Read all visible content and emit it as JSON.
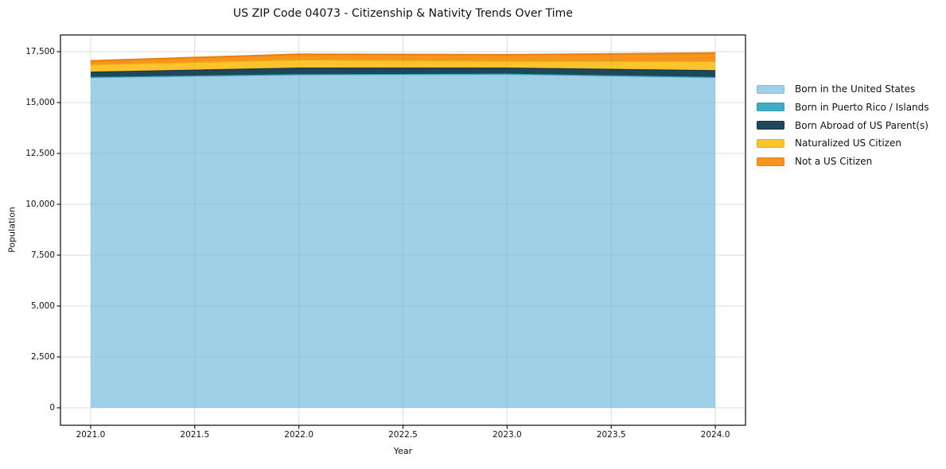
{
  "chart_data": {
    "type": "area",
    "stacked": true,
    "title": "US ZIP Code 04073 - Citizenship & Nativity Trends Over Time",
    "xlabel": "Year",
    "ylabel": "Population",
    "x": [
      2021,
      2022,
      2023,
      2024
    ],
    "series": [
      {
        "name": "Born in the United States",
        "color": "#a0d0e6",
        "edge_color": "#82bedb",
        "values": [
          16235,
          16370,
          16395,
          16235
        ]
      },
      {
        "name": "Born in Puerto Rico / Islands",
        "color": "#3fabc4",
        "edge_color": "#2f9cb8",
        "values": [
          25,
          25,
          25,
          25
        ]
      },
      {
        "name": "Born Abroad of US Parent(s)",
        "color": "#1e4859",
        "edge_color": "#16384a",
        "values": [
          260,
          325,
          300,
          330
        ]
      },
      {
        "name": "Naturalized US Citizen",
        "color": "#fcc32d",
        "edge_color": "#f2ad0e",
        "values": [
          350,
          390,
          325,
          440
        ]
      },
      {
        "name": "Not a US Citizen",
        "color": "#f6941e",
        "edge_color": "#e9830e",
        "values": [
          175,
          260,
          300,
          400
        ]
      }
    ],
    "totals_by_year": [
      17045,
      17370,
      17345,
      17430
    ],
    "xlim": [
      2020.855,
      2024.145
    ],
    "ylim": [
      -860,
      18320
    ],
    "x_ticks": [
      2021.0,
      2021.5,
      2022.0,
      2022.5,
      2023.0,
      2023.5,
      2024.0
    ],
    "x_tick_labels": [
      "2021.0",
      "2021.5",
      "2022.0",
      "2022.5",
      "2023.0",
      "2023.5",
      "2024.0"
    ],
    "y_ticks": [
      0,
      2500,
      5000,
      7500,
      10000,
      12500,
      15000,
      17500
    ],
    "y_tick_labels": [
      "0",
      "2,500",
      "5,000",
      "7,500",
      "10,000",
      "12,500",
      "15,000",
      "17,500"
    ],
    "grid": true,
    "legend_position": "right",
    "colors": {
      "plot_border": "#1a1a1a",
      "grid_under": "#ececec",
      "grid_over": "rgba(90,90,90,0.10)",
      "tick": "#1a1a1a",
      "text": "#111111",
      "background": "#ffffff"
    }
  }
}
